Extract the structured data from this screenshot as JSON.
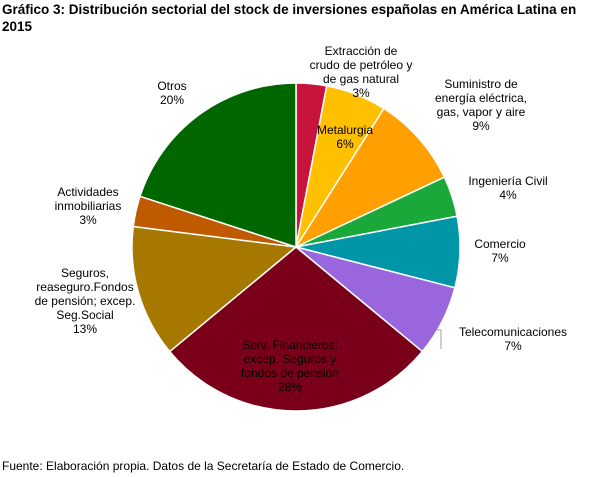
{
  "chart_data": {
    "type": "pie",
    "title": "Gráfico 3: Distribución sectorial del stock de inversiones españolas en América Latina en 2015",
    "source": "Fuente: Elaboración propia. Datos de la Secretaría de Estado de Comercio.",
    "slices": [
      {
        "lines": [
          "Extracción de",
          "crudo de petróleo y",
          "de gas natural"
        ],
        "pct_label": "3%",
        "value": 3,
        "color": "#c8143c"
      },
      {
        "lines": [
          "Metalurgia"
        ],
        "pct_label": "6%",
        "value": 6,
        "color": "#ffc000"
      },
      {
        "lines": [
          "Suministro de",
          "energía eléctrica,",
          "gas, vapor y aire"
        ],
        "pct_label": "9%",
        "value": 9,
        "color": "#ffa000"
      },
      {
        "lines": [
          "Ingeniería Civil"
        ],
        "pct_label": "4%",
        "value": 4,
        "color": "#1aa83a"
      },
      {
        "lines": [
          "Comercio"
        ],
        "pct_label": "7%",
        "value": 7,
        "color": "#0096a8"
      },
      {
        "lines": [
          "Telecomunicaciones"
        ],
        "pct_label": "7%",
        "value": 7,
        "color": "#9966dd"
      },
      {
        "lines": [
          "Serv. Financieros;",
          "excep. Seguros y",
          "fondos de pensión"
        ],
        "pct_label": "28%",
        "value": 28,
        "color": "#7a0019"
      },
      {
        "lines": [
          "Seguros,",
          "reaseguro.Fondos",
          "de pensión; excep.",
          "Seg.Social"
        ],
        "pct_label": "13%",
        "value": 13,
        "color": "#a67800"
      },
      {
        "lines": [
          "Actividades",
          "inmobiliarias"
        ],
        "pct_label": "3%",
        "value": 3,
        "color": "#c05a00"
      },
      {
        "lines": [
          "Otros"
        ],
        "pct_label": "20%",
        "value": 20,
        "color": "#006600"
      }
    ]
  }
}
